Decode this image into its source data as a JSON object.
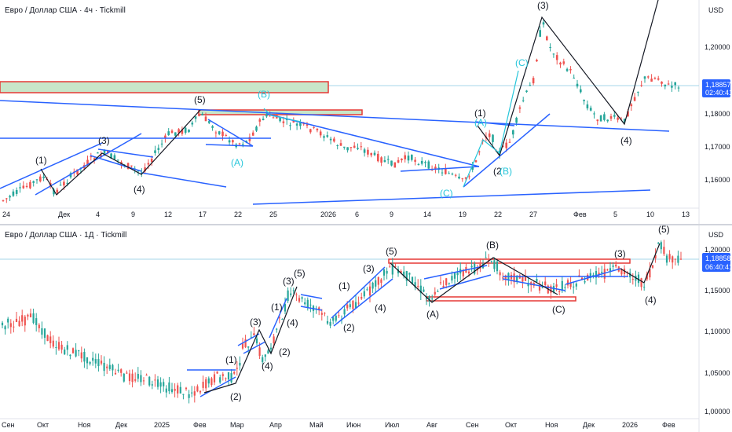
{
  "chart_data": [
    {
      "type": "candlestick",
      "title": "Евро / Доллар США · 4ч · Tickmill",
      "currency": "USD",
      "y_ticks": [
        "1,20000",
        "1,18000",
        "1,17000",
        "1,16000"
      ],
      "x_ticks": [
        "24",
        "Дек",
        "4",
        "9",
        "12",
        "17",
        "22",
        "25",
        "2026",
        "6",
        "9",
        "14",
        "19",
        "22",
        "27",
        "Фев",
        "5",
        "10",
        "13"
      ],
      "last_price": "1,18857",
      "countdown": "02:40:41",
      "annotations_black": [
        "(1)",
        "(3)",
        "(4)",
        "(5)",
        "(1)",
        "(2",
        "(3)",
        "(4)"
      ],
      "annotations_cyan": [
        "(A)",
        "(B)",
        "(A)",
        "(C)",
        "(C)",
        "(B)"
      ]
    },
    {
      "type": "candlestick",
      "title": "Евро / Доллар США · 1Д · Tickmill",
      "currency": "USD",
      "y_ticks": [
        "1,20000",
        "1,15000",
        "1,10000",
        "1,05000",
        "1,00000"
      ],
      "x_ticks": [
        "Сен",
        "Окт",
        "Ноя",
        "Дек",
        "2025",
        "Фев",
        "Мар",
        "Апр",
        "Май",
        "Июн",
        "Июл",
        "Авг",
        "Сен",
        "Окт",
        "Ноя",
        "Дек",
        "2026",
        "Фев"
      ],
      "last_price": "1,18858",
      "countdown": "06:40:41",
      "annotations": [
        "(1)",
        "(2)",
        "(3)",
        "(4)",
        "(1)",
        "(2)",
        "(3)",
        "(4)",
        "(5)",
        "(1)",
        "(2)",
        "(3)",
        "(4)",
        "(5)",
        "(A)",
        "(B)",
        "(C)",
        "(3)",
        "(4)",
        "(5)"
      ]
    }
  ]
}
